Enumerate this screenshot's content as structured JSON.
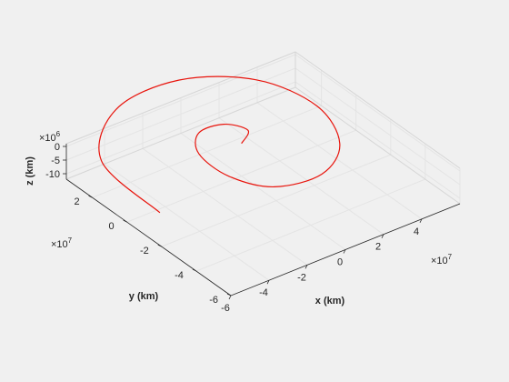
{
  "chart_data": {
    "type": "line3d",
    "title": "",
    "xlabel": "x (km)",
    "ylabel": "y (km)",
    "zlabel": "z (km)",
    "x_multiplier": {
      "base": "×10",
      "exp": "7"
    },
    "y_multiplier": {
      "base": "×10",
      "exp": "7"
    },
    "z_multiplier": {
      "base": "×10",
      "exp": "6"
    },
    "xlim": [
      -6,
      6
    ],
    "ylim": [
      -6,
      3.5
    ],
    "zlim": [
      -12,
      1
    ],
    "x_ticks": [
      -6,
      -4,
      -2,
      0,
      2,
      4
    ],
    "y_ticks": [
      -6,
      -4,
      -2,
      0,
      2
    ],
    "z_ticks": [
      -10,
      -5,
      0
    ],
    "x_tick_labels": [
      "-6",
      "-4",
      "-2",
      "0",
      "2",
      "4"
    ],
    "y_tick_labels": [
      "-6",
      "-4",
      "-2",
      "0",
      "2"
    ],
    "z_tick_labels": [
      "-10",
      "-5",
      "0"
    ],
    "grid": true,
    "series": [
      {
        "color": "#e8140c",
        "description": "planar outward spiral starting near origin",
        "x": [
          0.0,
          0.84,
          0.31,
          -0.95,
          -1.92,
          -1.97,
          -0.95,
          1.24,
          3.28,
          4.29,
          3.5,
          0.91,
          -2.56,
          -5.51,
          -6.0
        ],
        "y": [
          0.0,
          0.55,
          1.37,
          1.43,
          0.34,
          -1.46,
          -2.95,
          -3.28,
          -2.06,
          0.38,
          3.0,
          4.6,
          4.4,
          2.01,
          -1.9
        ],
        "z": [
          0,
          0,
          0,
          0,
          0,
          0,
          0,
          0,
          0,
          0,
          0,
          0,
          0,
          0,
          0
        ]
      }
    ]
  }
}
